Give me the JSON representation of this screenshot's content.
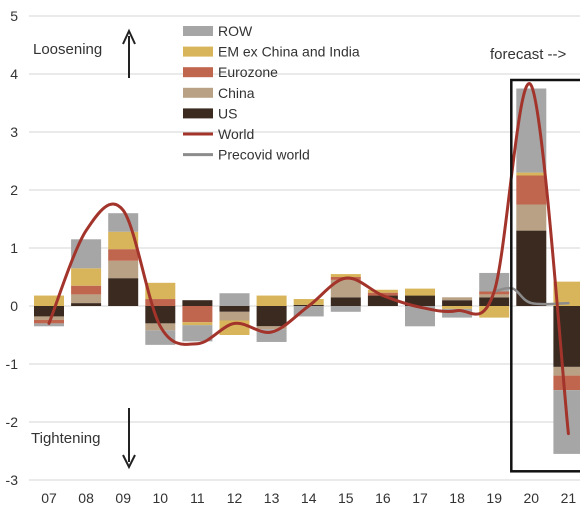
{
  "chart_data": {
    "type": "bar",
    "categories": [
      "07",
      "08",
      "09",
      "10",
      "11",
      "12",
      "13",
      "14",
      "15",
      "16",
      "17",
      "18",
      "19",
      "20",
      "21"
    ],
    "ylim": [
      -3,
      5
    ],
    "yticks": [
      "-3",
      "-2",
      "-1",
      "0",
      "1",
      "2",
      "3",
      "4",
      "5"
    ],
    "grid": true,
    "legend_position": "top",
    "series": [
      {
        "name": "US",
        "color": "#3b2a20",
        "values": [
          -0.18,
          0.05,
          0.48,
          -0.3,
          0.1,
          -0.1,
          -0.35,
          0.02,
          0.15,
          0.18,
          0.18,
          0.1,
          0.15,
          1.3,
          -1.05
        ]
      },
      {
        "name": "China",
        "color": "#b8a184",
        "values": [
          -0.06,
          0.15,
          0.3,
          -0.12,
          0.0,
          -0.15,
          -0.05,
          0.0,
          0.3,
          0.0,
          0.0,
          0.05,
          0.05,
          0.45,
          -0.15
        ]
      },
      {
        "name": "Eurozone",
        "color": "#c0664e",
        "values": [
          -0.06,
          0.15,
          0.2,
          0.12,
          -0.28,
          0.0,
          0.0,
          0.0,
          0.05,
          0.05,
          0.0,
          0.0,
          0.05,
          0.5,
          -0.25
        ]
      },
      {
        "name": "EM ex China and India",
        "color": "#d8b55a",
        "values": [
          0.18,
          0.3,
          0.3,
          0.28,
          -0.05,
          -0.25,
          0.18,
          0.1,
          0.05,
          0.05,
          0.12,
          -0.05,
          -0.2,
          0.05,
          0.42
        ]
      },
      {
        "name": "ROW",
        "color": "#a6a6a6",
        "values": [
          -0.05,
          0.5,
          0.32,
          -0.25,
          -0.28,
          0.22,
          -0.22,
          -0.18,
          -0.1,
          0.0,
          -0.35,
          -0.15,
          0.32,
          1.45,
          -1.1
        ]
      }
    ],
    "lines": [
      {
        "name": "World",
        "color": "#a3342b",
        "x": [
          "07",
          "08",
          "09",
          "10",
          "11",
          "12",
          "13",
          "14",
          "15",
          "16",
          "17",
          "18",
          "19",
          "20",
          "21"
        ],
        "values": [
          -0.3,
          1.3,
          1.65,
          -0.35,
          -0.65,
          -0.3,
          -0.45,
          0.0,
          0.48,
          0.18,
          -0.02,
          -0.08,
          0.25,
          3.8,
          -2.2
        ]
      },
      {
        "name": "Precovid world",
        "color": "#8c8c8c",
        "x": [
          "19",
          "19.5",
          "20",
          "21"
        ],
        "values": [
          0.25,
          0.3,
          0.05,
          0.05
        ]
      }
    ],
    "annotations": {
      "loosening": "Loosening",
      "tightening": "Tightening",
      "forecast": "forecast -->"
    },
    "highlight_box": [
      "20",
      "21"
    ]
  },
  "legend_order": [
    "ROW",
    "EM ex China and India",
    "Eurozone",
    "China",
    "US",
    "World",
    "Precovid world"
  ]
}
